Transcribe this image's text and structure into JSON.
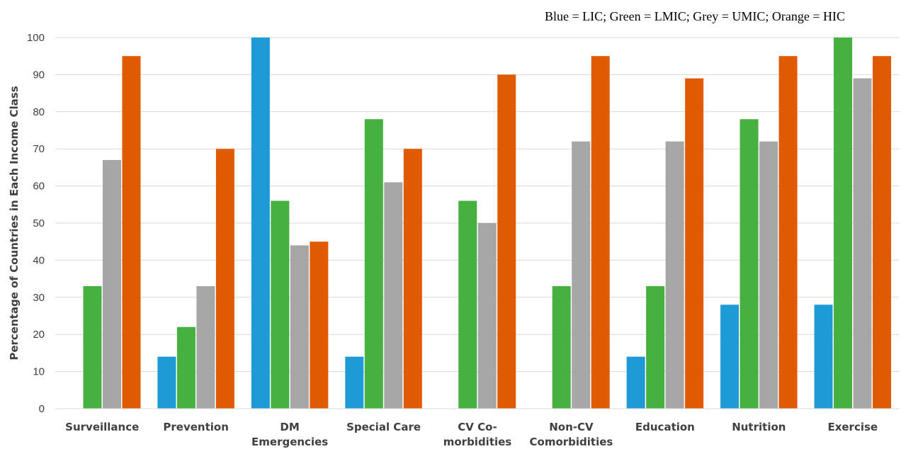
{
  "chart_data": {
    "type": "bar",
    "title": "",
    "annotation": "Blue = LIC; Green = LMIC; Grey = UMIC; Orange = HIC",
    "xlabel": "",
    "ylabel": "Percentage of Countries in Each Income Class",
    "ylim": [
      0,
      100
    ],
    "yticks": [
      0,
      10,
      20,
      30,
      40,
      50,
      60,
      70,
      80,
      90,
      100
    ],
    "grid": true,
    "categories": [
      [
        "Surveillance"
      ],
      [
        "Prevention"
      ],
      [
        "DM",
        "Emergencies"
      ],
      [
        "Special Care"
      ],
      [
        "CV Co-",
        "morbidities"
      ],
      [
        "Non-CV",
        "Comorbidities"
      ],
      [
        "Education"
      ],
      [
        "Nutrition"
      ],
      [
        "Exercise"
      ]
    ],
    "series": [
      {
        "color": "#1e9bd7",
        "values": [
          0,
          14,
          100,
          14,
          0,
          0,
          14,
          28,
          28
        ]
      },
      {
        "color": "#46b13f",
        "values": [
          33,
          22,
          56,
          78,
          56,
          33,
          33,
          78,
          100
        ]
      },
      {
        "color": "#a6a6a6",
        "values": [
          67,
          33,
          44,
          61,
          50,
          72,
          72,
          72,
          89
        ]
      },
      {
        "color": "#e05a00",
        "values": [
          95,
          70,
          45,
          70,
          90,
          95,
          89,
          95,
          95
        ]
      }
    ]
  }
}
